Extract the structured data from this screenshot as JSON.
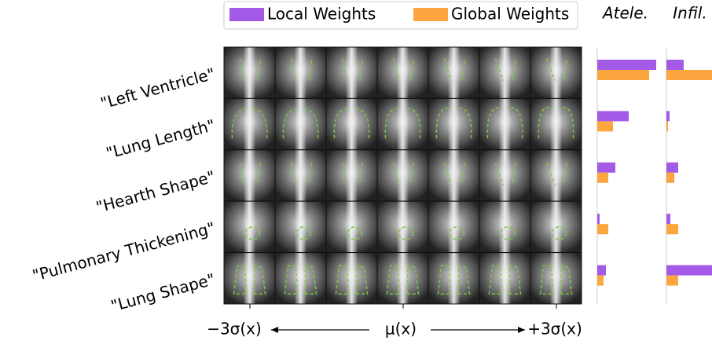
{
  "chart_data": {
    "type": "bar",
    "orientation": "horizontal",
    "legend_position": "top",
    "categories": [
      "\"Left Ventricle\"",
      "\"Lung Length\"",
      "\"Hearth Shape\"",
      "\"Pulmonary Thickening\"",
      "\"Lung Shape\""
    ],
    "series": [
      {
        "name": "Local Weights",
        "color": "#a35ae6"
      },
      {
        "name": "Global Weights",
        "color": "#fca63f"
      }
    ],
    "panels": [
      {
        "title": "Atele.",
        "xlim": [
          0,
          80
        ],
        "values": [
          [
            75,
            40,
            23,
            3,
            11
          ],
          [
            66,
            20,
            14,
            14,
            8
          ]
        ]
      },
      {
        "title": "Infil.",
        "xlim": [
          0,
          58
        ],
        "values": [
          [
            22,
            4,
            15,
            5,
            58
          ],
          [
            58,
            2,
            10,
            15,
            15
          ]
        ]
      }
    ],
    "x_axis_labels": [
      "−3σ(x)",
      "μ(x)",
      "+3σ(x)"
    ]
  }
}
